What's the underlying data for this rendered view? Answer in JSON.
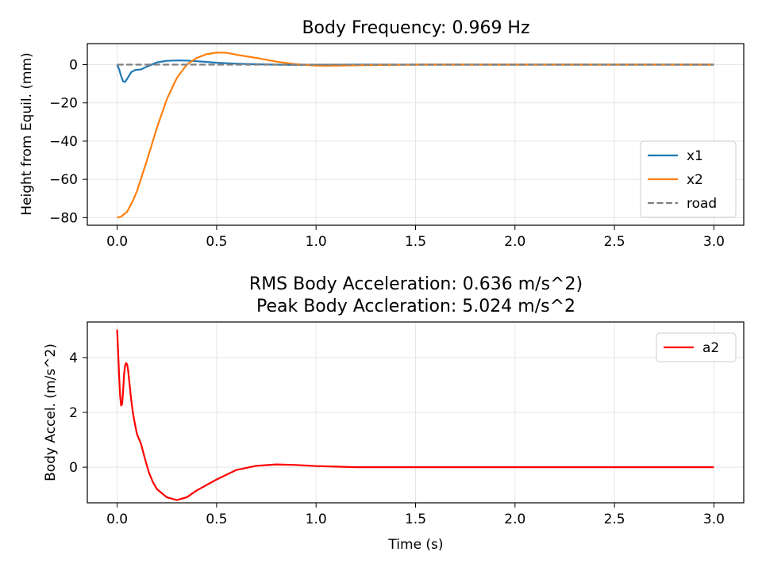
{
  "chart_data": [
    {
      "type": "line",
      "title": "Body Frequency: 0.969 Hz",
      "xlabel": "",
      "ylabel": "Height from Equil. (mm)",
      "xlim": [
        -0.15,
        3.15
      ],
      "ylim": [
        -84,
        11
      ],
      "xticks": [
        0.0,
        0.5,
        1.0,
        1.5,
        2.0,
        2.5,
        3.0
      ],
      "xtick_labels": [
        "0.0",
        "0.5",
        "1.0",
        "1.5",
        "2.0",
        "2.5",
        "3.0"
      ],
      "yticks": [
        0,
        -20,
        -40,
        -60,
        -80
      ],
      "ytick_labels": [
        "0",
        "−20",
        "−40",
        "−60",
        "−80"
      ],
      "grid": true,
      "legend_position": "lower-right",
      "series": [
        {
          "name": "x1",
          "color": "#1f77b4",
          "dash": "solid",
          "x": [
            0,
            0.01,
            0.02,
            0.03,
            0.04,
            0.05,
            0.07,
            0.09,
            0.12,
            0.15,
            0.2,
            0.25,
            0.3,
            0.35,
            0.4,
            0.5,
            0.6,
            0.7,
            0.8,
            0.9,
            1.0,
            1.2,
            1.5,
            2.0,
            2.5,
            3.0
          ],
          "y": [
            0,
            -2.5,
            -6,
            -8.8,
            -9,
            -7.5,
            -4,
            -2.8,
            -2.5,
            -1,
            1.2,
            2.0,
            2.2,
            2.1,
            1.8,
            1.0,
            0.5,
            0.2,
            0.0,
            -0.1,
            -0.1,
            0.0,
            0.0,
            0.0,
            0.0,
            0.0
          ]
        },
        {
          "name": "x2",
          "color": "#ff7f0e",
          "dash": "solid",
          "x": [
            0,
            0.02,
            0.05,
            0.08,
            0.1,
            0.15,
            0.2,
            0.25,
            0.3,
            0.35,
            0.4,
            0.45,
            0.5,
            0.55,
            0.6,
            0.7,
            0.8,
            0.9,
            1.0,
            1.05,
            1.1,
            1.2,
            1.5,
            2.0,
            2.5,
            3.0
          ],
          "y": [
            -80,
            -79.5,
            -77,
            -71,
            -66,
            -50,
            -33,
            -18,
            -7,
            0,
            3.5,
            5.5,
            6.3,
            6.2,
            5.2,
            3.5,
            1.6,
            0.2,
            -0.5,
            -0.6,
            -0.5,
            -0.3,
            0.0,
            0.0,
            0.0,
            0.0
          ]
        },
        {
          "name": "road",
          "color": "#808080",
          "dash": "dashed",
          "x": [
            0,
            3.0
          ],
          "y": [
            0,
            0
          ]
        }
      ]
    },
    {
      "type": "line",
      "title_lines": [
        "RMS Body Acceleration: 0.636 m/s^2)",
        "Peak Body Accleration: 5.024 m/s^2"
      ],
      "xlabel": "Time (s)",
      "ylabel": "Body Accel. (m/s^2)",
      "xlim": [
        -0.15,
        3.15
      ],
      "ylim": [
        -1.3,
        5.3
      ],
      "xticks": [
        0.0,
        0.5,
        1.0,
        1.5,
        2.0,
        2.5,
        3.0
      ],
      "xtick_labels": [
        "0.0",
        "0.5",
        "1.0",
        "1.5",
        "2.0",
        "2.5",
        "3.0"
      ],
      "yticks": [
        4,
        2,
        0
      ],
      "ytick_labels": [
        "4",
        "2",
        "0"
      ],
      "grid": true,
      "legend_position": "top-right",
      "series": [
        {
          "name": "a2",
          "color": "#ff0000",
          "dash": "solid",
          "x": [
            0,
            0.005,
            0.01,
            0.015,
            0.02,
            0.025,
            0.03,
            0.035,
            0.04,
            0.045,
            0.05,
            0.055,
            0.06,
            0.07,
            0.08,
            0.09,
            0.1,
            0.12,
            0.14,
            0.16,
            0.18,
            0.2,
            0.25,
            0.3,
            0.35,
            0.4,
            0.5,
            0.6,
            0.7,
            0.8,
            0.9,
            1.0,
            1.1,
            1.2,
            1.5,
            2.0,
            2.5,
            3.0
          ],
          "y": [
            5.02,
            4.2,
            3.3,
            2.6,
            2.25,
            2.3,
            2.8,
            3.4,
            3.72,
            3.8,
            3.75,
            3.55,
            3.2,
            2.5,
            1.95,
            1.55,
            1.2,
            0.85,
            0.3,
            -0.2,
            -0.55,
            -0.8,
            -1.1,
            -1.2,
            -1.1,
            -0.85,
            -0.45,
            -0.1,
            0.05,
            0.1,
            0.08,
            0.04,
            0.02,
            0.0,
            0.0,
            0.0,
            0.0,
            0.0
          ]
        }
      ]
    }
  ]
}
